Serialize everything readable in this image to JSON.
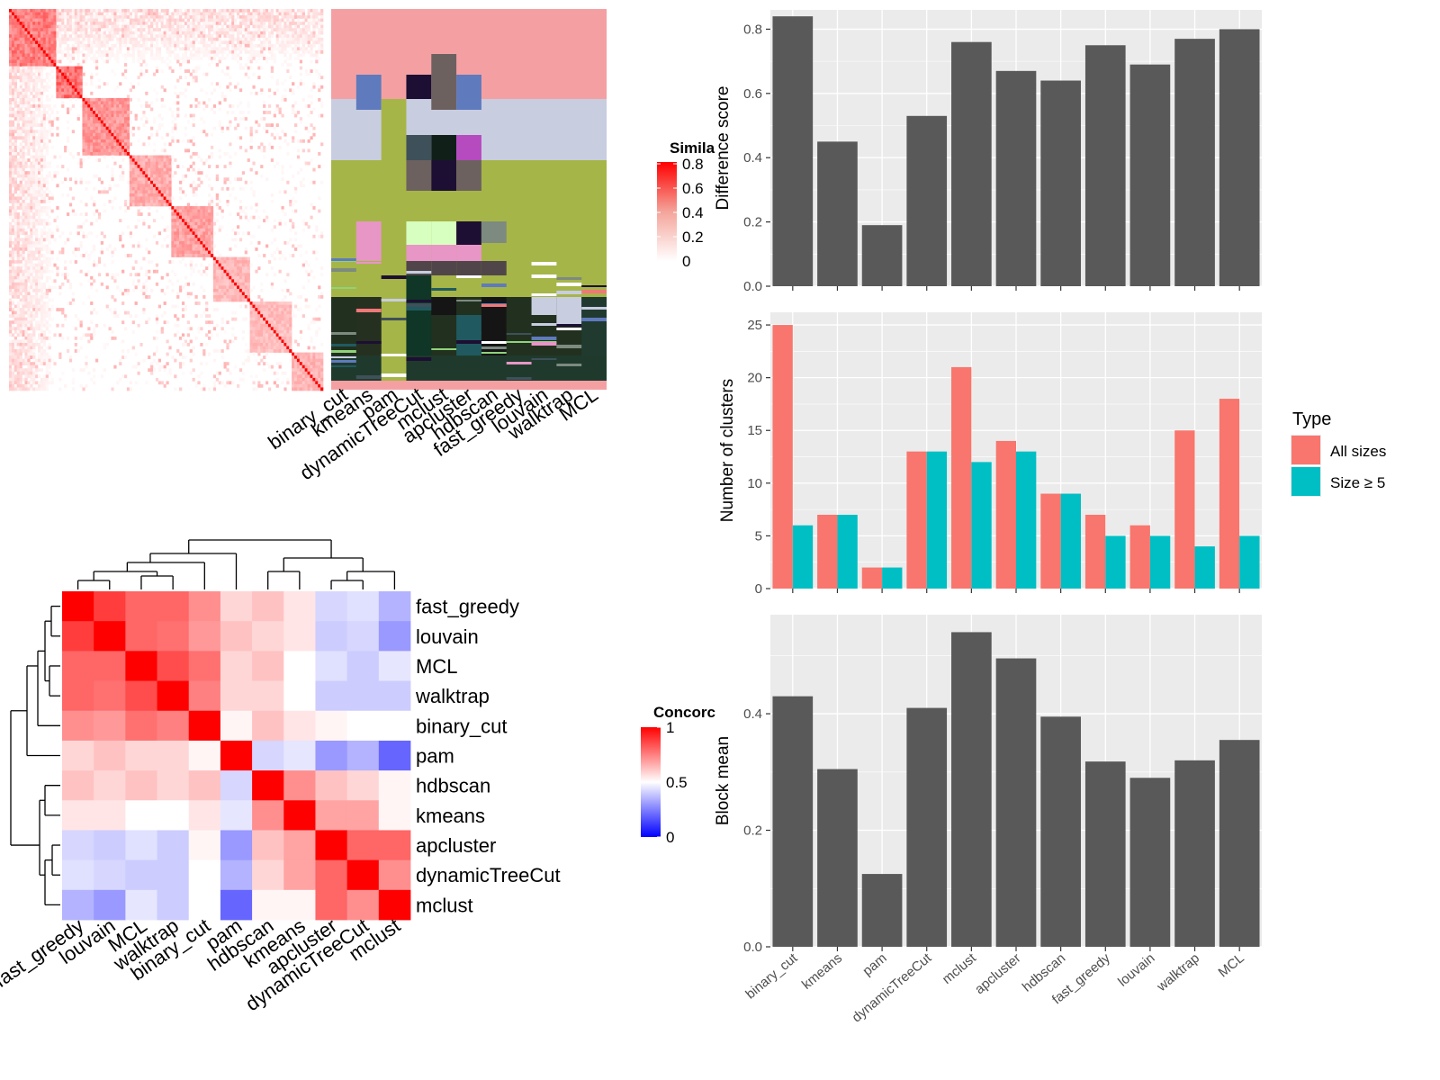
{
  "colors": {
    "panel_bg": "#ebebeb",
    "grid": "#ffffff",
    "bar_gray": "#595959",
    "all_sizes": "#f8766d",
    "size_ge5": "#00bfc4",
    "heat_high": "#ff0000",
    "heat_mid": "#ffffff",
    "heat_low": "#0000ff"
  },
  "heatmap_similarity": {
    "legend_title": "Simila",
    "legend_ticks": [
      "0.8",
      "0.6",
      "0.4",
      "0.2",
      "0"
    ],
    "method_labels": [
      "binary_cut",
      "kmeans",
      "pam",
      "dynamicTreeCut",
      "mclust",
      "apcluster",
      "hdbscan",
      "fast_greedy",
      "louvain",
      "walktrap",
      "MCL"
    ]
  },
  "heatmap_concordance": {
    "legend_title": "Concorc",
    "legend_ticks": [
      "1",
      "0.5",
      "0"
    ]
  },
  "chart_data": [
    {
      "type": "heatmap",
      "title": "",
      "legend_title": "Concorc",
      "row_labels": [
        "fast_greedy",
        "louvain",
        "MCL",
        "walktrap",
        "binary_cut",
        "pam",
        "hdbscan",
        "kmeans",
        "apcluster",
        "dynamicTreeCut",
        "mclust"
      ],
      "col_labels": [
        "fast_greedy",
        "louvain",
        "MCL",
        "walktrap",
        "binary_cut",
        "pam",
        "hdbscan",
        "kmeans",
        "apcluster",
        "dynamicTreeCut",
        "mclust"
      ],
      "values": [
        [
          1.0,
          0.88,
          0.8,
          0.8,
          0.72,
          0.58,
          0.62,
          0.55,
          0.42,
          0.44,
          0.35
        ],
        [
          0.88,
          1.0,
          0.8,
          0.78,
          0.7,
          0.62,
          0.58,
          0.55,
          0.4,
          0.42,
          0.3
        ],
        [
          0.8,
          0.8,
          1.0,
          0.85,
          0.78,
          0.58,
          0.62,
          0.5,
          0.44,
          0.4,
          0.45
        ],
        [
          0.8,
          0.78,
          0.85,
          1.0,
          0.75,
          0.58,
          0.58,
          0.5,
          0.4,
          0.4,
          0.4
        ],
        [
          0.72,
          0.7,
          0.78,
          0.75,
          1.0,
          0.52,
          0.62,
          0.55,
          0.52,
          0.5,
          0.5
        ],
        [
          0.58,
          0.62,
          0.58,
          0.58,
          0.52,
          1.0,
          0.42,
          0.45,
          0.3,
          0.35,
          0.2
        ],
        [
          0.62,
          0.58,
          0.62,
          0.58,
          0.62,
          0.42,
          1.0,
          0.72,
          0.62,
          0.58,
          0.52
        ],
        [
          0.55,
          0.55,
          0.5,
          0.5,
          0.55,
          0.45,
          0.72,
          1.0,
          0.68,
          0.68,
          0.52
        ],
        [
          0.42,
          0.4,
          0.44,
          0.4,
          0.52,
          0.3,
          0.62,
          0.68,
          1.0,
          0.8,
          0.8
        ],
        [
          0.44,
          0.42,
          0.4,
          0.4,
          0.5,
          0.35,
          0.58,
          0.68,
          0.8,
          1.0,
          0.72
        ],
        [
          0.35,
          0.3,
          0.45,
          0.4,
          0.5,
          0.2,
          0.52,
          0.52,
          0.8,
          0.72,
          1.0
        ]
      ],
      "legend_ticks": [
        1,
        0.5,
        0
      ],
      "color_range": [
        0,
        1
      ]
    },
    {
      "type": "bar",
      "title": "",
      "categories": [
        "binary_cut",
        "kmeans",
        "pam",
        "dynamicTreeCut",
        "mclust",
        "apcluster",
        "hdbscan",
        "fast_greedy",
        "louvain",
        "walktrap",
        "MCL"
      ],
      "values": [
        0.84,
        0.45,
        0.19,
        0.53,
        0.76,
        0.67,
        0.64,
        0.75,
        0.69,
        0.77,
        0.8
      ],
      "xlabel": "",
      "ylabel": "Difference score",
      "ylim": [
        0,
        0.86
      ],
      "yticks": [
        0.0,
        0.2,
        0.4,
        0.6,
        0.8
      ],
      "ytick_labels": [
        "0.0",
        "0.2",
        "0.4",
        "0.6",
        "0.8"
      ],
      "grid": true
    },
    {
      "type": "bar",
      "title": "",
      "categories": [
        "binary_cut",
        "kmeans",
        "pam",
        "dynamicTreeCut",
        "mclust",
        "apcluster",
        "hdbscan",
        "fast_greedy",
        "louvain",
        "walktrap",
        "MCL"
      ],
      "series": [
        {
          "name": "All sizes",
          "values": [
            25,
            7,
            2,
            13,
            21,
            14,
            9,
            7,
            6,
            15,
            18
          ]
        },
        {
          "name": "Size ≥ 5",
          "values": [
            6,
            7,
            2,
            13,
            12,
            13,
            9,
            5,
            5,
            4,
            5
          ]
        }
      ],
      "xlabel": "",
      "ylabel": "Number of clusters",
      "ylim": [
        0,
        26.2
      ],
      "yticks": [
        0,
        5,
        10,
        15,
        20,
        25
      ],
      "ytick_labels": [
        "0",
        "5",
        "10",
        "15",
        "20",
        "25"
      ],
      "legend_title": "Type",
      "legend_position": "right",
      "grid": true
    },
    {
      "type": "bar",
      "title": "",
      "categories": [
        "binary_cut",
        "kmeans",
        "pam",
        "dynamicTreeCut",
        "mclust",
        "apcluster",
        "hdbscan",
        "fast_greedy",
        "louvain",
        "walktrap",
        "MCL"
      ],
      "values": [
        0.43,
        0.305,
        0.125,
        0.41,
        0.54,
        0.495,
        0.395,
        0.318,
        0.29,
        0.32,
        0.355
      ],
      "xlabel": "",
      "ylabel": "Block mean",
      "ylim": [
        0,
        0.57
      ],
      "yticks": [
        0.0,
        0.2,
        0.4
      ],
      "ytick_labels": [
        "0.0",
        "0.2",
        "0.4"
      ],
      "grid": true
    }
  ]
}
